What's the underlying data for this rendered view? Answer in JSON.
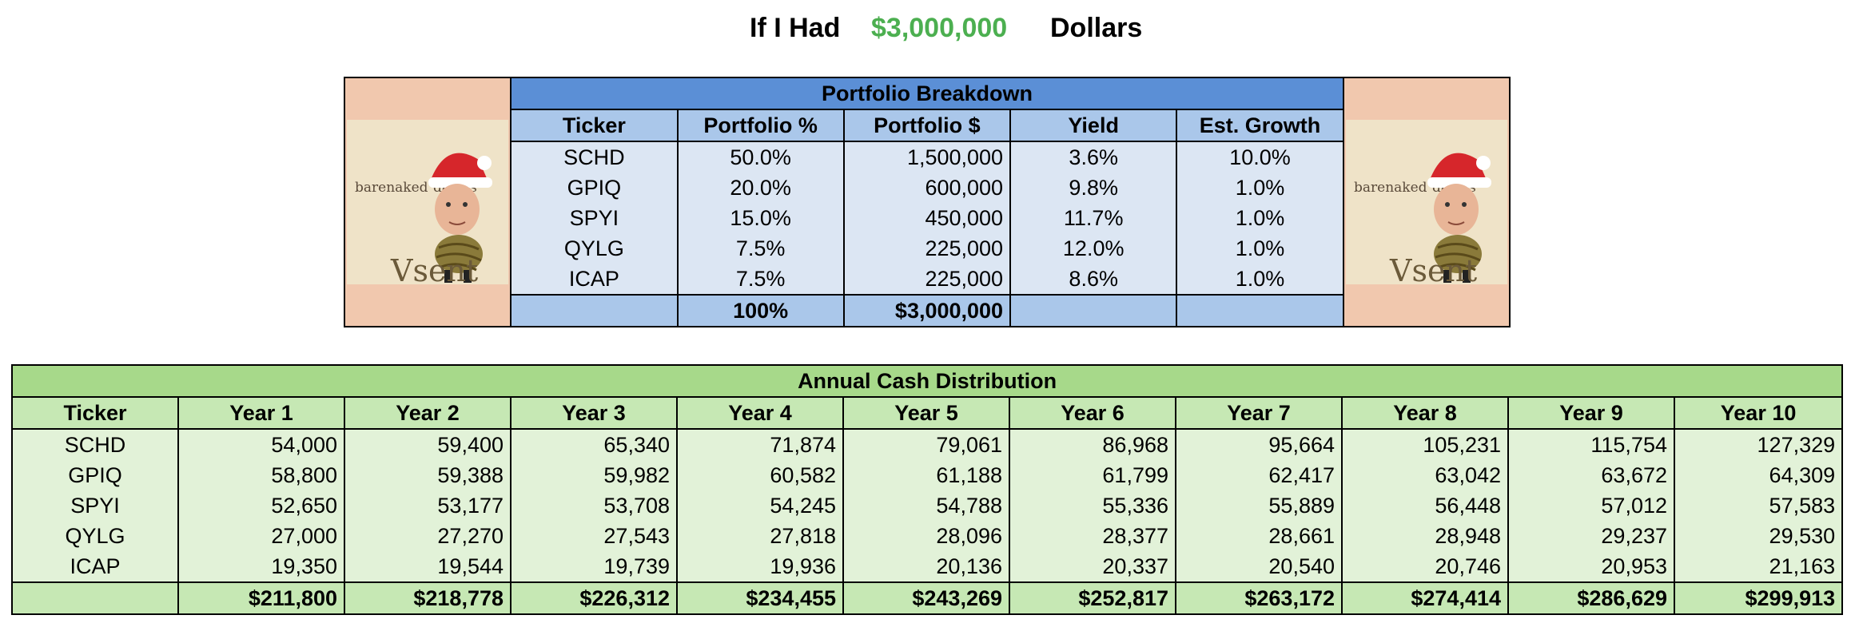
{
  "title": {
    "prefix": "If I Had",
    "amount": "$3,000,000",
    "suffix": "Dollars"
  },
  "cover": {
    "text1": "barenaked",
    "text2": "davies",
    "text3": "Vsent"
  },
  "portfolio": {
    "band": "Portfolio Breakdown",
    "headers": [
      "Ticker",
      "Portfolio %",
      "Portfolio $",
      "Yield",
      "Est. Growth"
    ],
    "rows": [
      [
        "SCHD",
        "50.0%",
        "1,500,000",
        "3.6%",
        "10.0%"
      ],
      [
        "GPIQ",
        "20.0%",
        "600,000",
        "9.8%",
        "1.0%"
      ],
      [
        "SPYI",
        "15.0%",
        "450,000",
        "11.7%",
        "1.0%"
      ],
      [
        "QYLG",
        "7.5%",
        "225,000",
        "12.0%",
        "1.0%"
      ],
      [
        "ICAP",
        "7.5%",
        "225,000",
        "8.6%",
        "1.0%"
      ]
    ],
    "totals": [
      "",
      "100%",
      "$3,000,000",
      "",
      ""
    ]
  },
  "distribution": {
    "band": "Annual Cash Distribution",
    "headers": [
      "Ticker",
      "Year 1",
      "Year 2",
      "Year 3",
      "Year 4",
      "Year 5",
      "Year 6",
      "Year 7",
      "Year 8",
      "Year 9",
      "Year 10"
    ],
    "rows": [
      [
        "SCHD",
        "54,000",
        "59,400",
        "65,340",
        "71,874",
        "79,061",
        "86,968",
        "95,664",
        "105,231",
        "115,754",
        "127,329"
      ],
      [
        "GPIQ",
        "58,800",
        "59,388",
        "59,982",
        "60,582",
        "61,188",
        "61,799",
        "62,417",
        "63,042",
        "63,672",
        "64,309"
      ],
      [
        "SPYI",
        "52,650",
        "53,177",
        "53,708",
        "54,245",
        "54,788",
        "55,336",
        "55,889",
        "56,448",
        "57,012",
        "57,583"
      ],
      [
        "QYLG",
        "27,000",
        "27,270",
        "27,543",
        "27,818",
        "28,096",
        "28,377",
        "28,661",
        "28,948",
        "29,237",
        "29,530"
      ],
      [
        "ICAP",
        "19,350",
        "19,544",
        "19,739",
        "19,936",
        "20,136",
        "20,337",
        "20,540",
        "20,746",
        "20,953",
        "21,163"
      ]
    ],
    "totals": [
      "",
      "$211,800",
      "$218,778",
      "$226,312",
      "$234,455",
      "$243,269",
      "$252,817",
      "$263,172",
      "$274,414",
      "$286,629",
      "$299,913"
    ]
  }
}
